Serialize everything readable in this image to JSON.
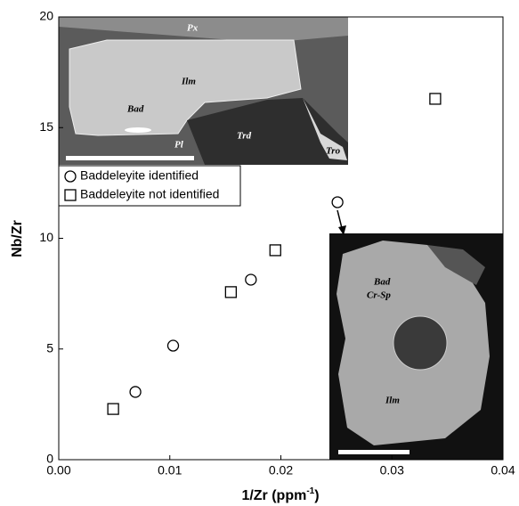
{
  "chart_data": {
    "type": "scatter",
    "xlabel": "1/Zr (ppm",
    "xlabel_sup": "-1",
    "xlabel_end": ")",
    "ylabel": "Nb/Zr",
    "xlim": [
      0,
      0.04
    ],
    "xticks": [
      {
        "value": 0,
        "label": "0.00"
      },
      0.01,
      0.02,
      0.03,
      0.04
    ],
    "ylim": [
      0,
      20
    ],
    "yticks": [
      0,
      5,
      10,
      15,
      20
    ],
    "series": [
      {
        "name": "Baddeleyite identified",
        "marker": "circle",
        "color": "#000000",
        "x": [
          0.0069,
          0.0103,
          0.0173,
          0.0251
        ],
        "values": [
          3.06,
          5.15,
          8.13,
          11.63
        ]
      },
      {
        "name": "Baddeleyite not identified",
        "marker": "square",
        "color": "#000000",
        "x": [
          0.0049,
          0.0155,
          0.0195,
          0.0339
        ],
        "values": [
          2.29,
          7.57,
          9.46,
          16.3
        ]
      }
    ],
    "insets": [
      {
        "labels": [
          "Px",
          "Ilm",
          "Bad",
          "Pl",
          "Trd",
          "Tro"
        ]
      },
      {
        "labels": [
          "Bad",
          "Cr-Sp",
          "Ilm"
        ]
      }
    ]
  }
}
